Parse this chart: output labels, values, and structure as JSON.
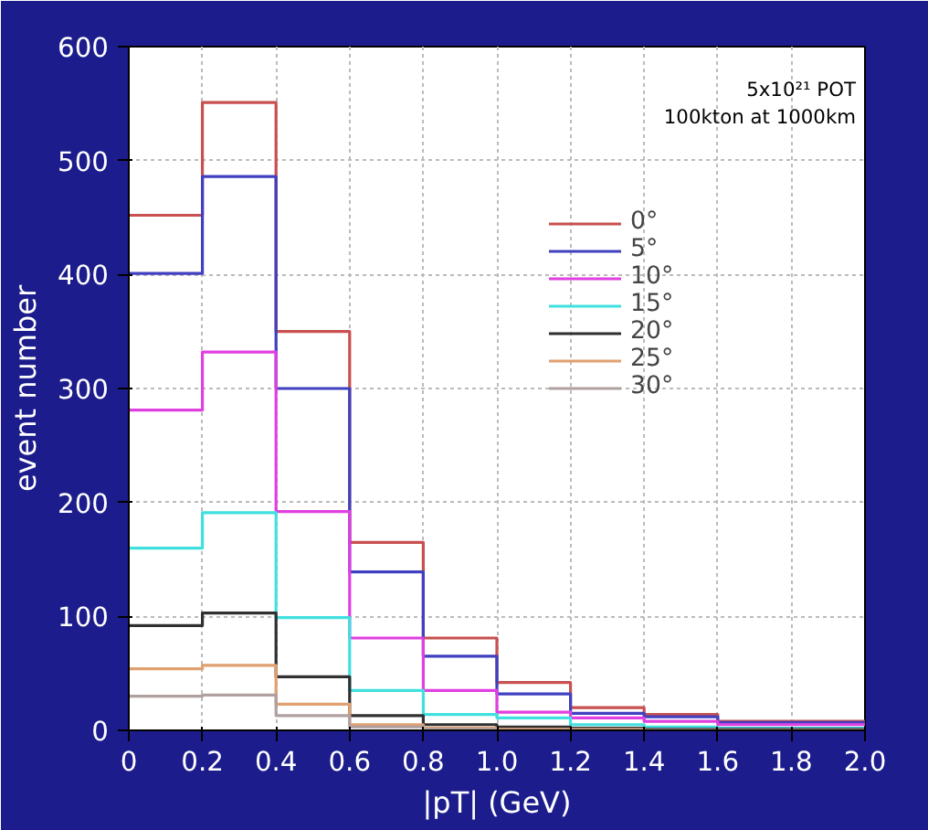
{
  "chart_data": {
    "type": "histogram",
    "xlabel": "|pT| (GeV)",
    "ylabel": "event number",
    "bins": [
      0,
      0.2,
      0.4,
      0.6,
      0.8,
      1.0,
      1.2,
      1.4,
      1.6,
      1.8,
      2.0
    ],
    "series": [
      {
        "name": "0°",
        "color": "#c85050",
        "values": [
          452,
          551,
          350,
          165,
          81,
          42,
          20,
          14,
          8,
          8
        ]
      },
      {
        "name": "5°",
        "color": "#4040c0",
        "values": [
          401,
          486,
          300,
          139,
          65,
          32,
          15,
          12,
          7,
          7
        ]
      },
      {
        "name": "10°",
        "color": "#e040e0",
        "values": [
          281,
          332,
          192,
          81,
          35,
          16,
          11,
          8,
          5,
          5
        ]
      },
      {
        "name": "15°",
        "color": "#40e0e0",
        "values": [
          160,
          191,
          99,
          35,
          14,
          11,
          5,
          3,
          2,
          2
        ]
      },
      {
        "name": "20°",
        "color": "#303030",
        "values": [
          92,
          103,
          47,
          13,
          5,
          3,
          2,
          1,
          1,
          1
        ]
      },
      {
        "name": "25°",
        "color": "#e0a070",
        "values": [
          54,
          57,
          23,
          5,
          2,
          1,
          1,
          0,
          0,
          0
        ]
      },
      {
        "name": "30°",
        "color": "#b0a0a0",
        "values": [
          30,
          31,
          13,
          3,
          1,
          0,
          0,
          0,
          0,
          0
        ]
      }
    ],
    "xlim": [
      0,
      2.0
    ],
    "ylim": [
      0,
      600
    ],
    "xticks": [
      0,
      0.2,
      0.4,
      0.6,
      0.8,
      {
        "value": 1.0,
        "label": "1.0"
      },
      1.2,
      1.4,
      1.6,
      1.8,
      {
        "value": 2.0,
        "label": "2.0"
      }
    ],
    "yticks": [
      0,
      100,
      200,
      300,
      400,
      500,
      600
    ],
    "annotations": [
      "5x10²¹ POT",
      "100kton at 1000km"
    ],
    "grid": true,
    "legend": "top right"
  }
}
